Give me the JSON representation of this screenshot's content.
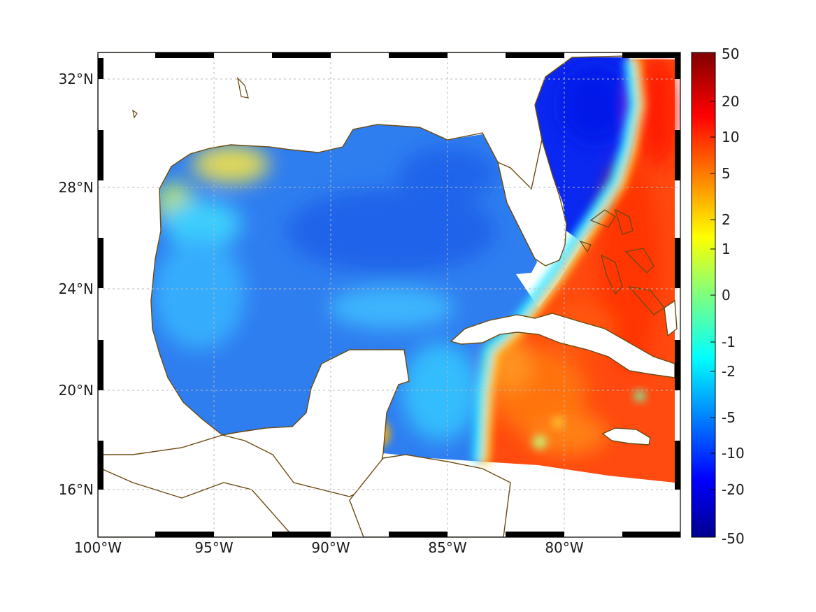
{
  "map": {
    "lon_labels": [
      "100°W",
      "95°W",
      "90°W",
      "85°W",
      "80°W"
    ],
    "lat_labels": [
      "32°N",
      "28°N",
      "24°N",
      "20°N",
      "16°N"
    ],
    "lon_range": [
      -100,
      -75
    ],
    "lat_range": [
      14.5,
      33
    ],
    "coastline_color": "#6b4a12",
    "grid": true
  },
  "colorbar": {
    "tick_labels": [
      "50",
      "20",
      "10",
      "5",
      "2",
      "1",
      "0",
      "-1",
      "-2",
      "-5",
      "-10",
      "-20",
      "-50"
    ],
    "colormap": "jet",
    "scale": "symmetric-nonlinear",
    "range": [
      -50,
      50
    ]
  }
}
